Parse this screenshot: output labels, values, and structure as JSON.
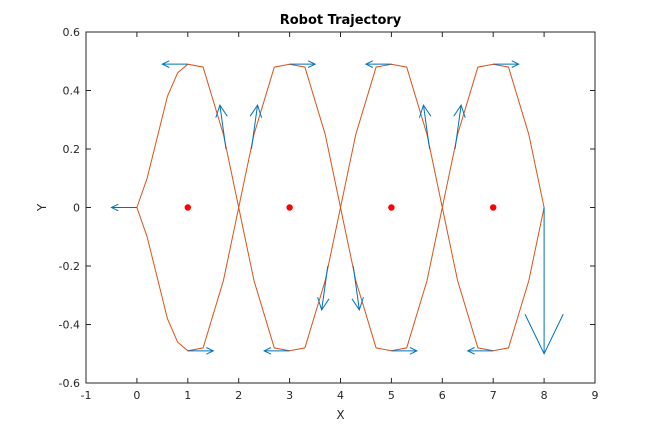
{
  "chart_data": {
    "type": "line",
    "title": "Robot Trajectory",
    "xlabel": "X",
    "ylabel": "Y",
    "xlim": [
      -1,
      9
    ],
    "ylim": [
      -0.6,
      0.6
    ],
    "xticks": [
      -1,
      0,
      1,
      2,
      3,
      4,
      5,
      6,
      7,
      8,
      9
    ],
    "yticks": [
      -0.6,
      -0.4,
      -0.2,
      0,
      0.2,
      0.4,
      0.6
    ],
    "xtick_labels": [
      "-1",
      "0",
      "1",
      "2",
      "3",
      "4",
      "5",
      "6",
      "7",
      "8",
      "9"
    ],
    "ytick_labels": [
      "-0.6",
      "-0.4",
      "-0.2",
      "0",
      "0.2",
      "0.4",
      "0.6"
    ],
    "grid": false,
    "colors": {
      "path": "#d95319",
      "arrows": "#0072bd",
      "points": "#ff0000",
      "axes": "#262626"
    },
    "path": [
      [
        0,
        0
      ],
      [
        0.2,
        0.1
      ],
      [
        0.4,
        0.24
      ],
      [
        0.6,
        0.38
      ],
      [
        0.8,
        0.46
      ],
      [
        1,
        0.49
      ],
      [
        1.3,
        0.48
      ],
      [
        1.7,
        0.25
      ],
      [
        2,
        0
      ],
      [
        2.3,
        -0.25
      ],
      [
        2.7,
        -0.48
      ],
      [
        3,
        -0.49
      ],
      [
        3.3,
        -0.48
      ],
      [
        3.7,
        -0.25
      ],
      [
        4,
        0
      ],
      [
        4.3,
        0.25
      ],
      [
        4.7,
        0.48
      ],
      [
        5,
        0.49
      ],
      [
        5.3,
        0.48
      ],
      [
        5.7,
        0.25
      ],
      [
        6,
        0
      ],
      [
        6.3,
        -0.25
      ],
      [
        6.7,
        -0.48
      ],
      [
        7,
        -0.49
      ],
      [
        7.3,
        -0.48
      ],
      [
        7.7,
        -0.25
      ],
      [
        8,
        0
      ],
      [
        7.7,
        0.25
      ],
      [
        7.3,
        0.48
      ],
      [
        7,
        0.49
      ],
      [
        6.7,
        0.48
      ],
      [
        6.3,
        0.25
      ],
      [
        6,
        0
      ],
      [
        5.7,
        -0.25
      ],
      [
        5.3,
        -0.48
      ],
      [
        5,
        -0.49
      ],
      [
        4.7,
        -0.48
      ],
      [
        4.3,
        -0.25
      ],
      [
        4,
        0
      ],
      [
        3.7,
        0.25
      ],
      [
        3.3,
        0.48
      ],
      [
        3,
        0.49
      ],
      [
        2.7,
        0.48
      ],
      [
        2.3,
        0.25
      ],
      [
        2,
        0
      ],
      [
        1.7,
        -0.25
      ],
      [
        1.3,
        -0.48
      ],
      [
        1,
        -0.49
      ],
      [
        0.8,
        -0.46
      ],
      [
        0.6,
        -0.38
      ],
      [
        0.4,
        -0.24
      ],
      [
        0.2,
        -0.1
      ],
      [
        0,
        0
      ]
    ],
    "points": [
      [
        1,
        0
      ],
      [
        3,
        0
      ],
      [
        5,
        0
      ],
      [
        7,
        0
      ]
    ],
    "arrows": [
      {
        "x": 0,
        "y": 0,
        "u": -0.5,
        "v": 0
      },
      {
        "x": 1,
        "y": 0.49,
        "u": -0.5,
        "v": 0
      },
      {
        "x": 3,
        "y": 0.49,
        "u": 0.5,
        "v": 0
      },
      {
        "x": 5,
        "y": 0.49,
        "u": -0.5,
        "v": 0
      },
      {
        "x": 7,
        "y": 0.49,
        "u": 0.5,
        "v": 0
      },
      {
        "x": 1,
        "y": -0.49,
        "u": 0.5,
        "v": 0
      },
      {
        "x": 3,
        "y": -0.49,
        "u": -0.5,
        "v": 0
      },
      {
        "x": 5,
        "y": -0.49,
        "u": 0.5,
        "v": 0
      },
      {
        "x": 7,
        "y": -0.49,
        "u": -0.5,
        "v": 0
      },
      {
        "x": 1.75,
        "y": 0.2,
        "u": -0.12,
        "v": 0.15
      },
      {
        "x": 2.25,
        "y": 0.2,
        "u": 0.12,
        "v": 0.15
      },
      {
        "x": 5.75,
        "y": 0.2,
        "u": -0.12,
        "v": 0.15
      },
      {
        "x": 6.25,
        "y": 0.2,
        "u": 0.12,
        "v": 0.15
      },
      {
        "x": 3.75,
        "y": -0.2,
        "u": -0.12,
        "v": -0.15
      },
      {
        "x": 4.25,
        "y": -0.2,
        "u": 0.12,
        "v": -0.15
      },
      {
        "x": 8,
        "y": 0,
        "u": 0,
        "v": -0.5
      }
    ]
  }
}
